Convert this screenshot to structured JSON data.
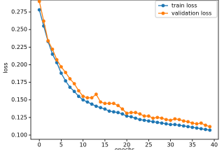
{
  "chart_data": {
    "type": "line",
    "x_label": "epochs",
    "y_label": "loss",
    "x": [
      0,
      1,
      2,
      3,
      4,
      5,
      6,
      7,
      8,
      9,
      10,
      11,
      12,
      13,
      14,
      15,
      16,
      17,
      18,
      19,
      20,
      21,
      22,
      23,
      24,
      25,
      26,
      27,
      28,
      29,
      30,
      31,
      32,
      33,
      34,
      35,
      36,
      37,
      38,
      39
    ],
    "series": [
      {
        "name": "train loss",
        "color": "#1f77b4",
        "values": [
          0.278,
          0.255,
          0.233,
          0.215,
          0.203,
          0.188,
          0.177,
          0.168,
          0.162,
          0.155,
          0.15,
          0.147,
          0.144,
          0.141,
          0.139,
          0.137,
          0.134,
          0.133,
          0.132,
          0.13,
          0.127,
          0.126,
          0.124,
          0.122,
          0.121,
          0.12,
          0.119,
          0.118,
          0.117,
          0.116,
          0.115,
          0.115,
          0.114,
          0.113,
          0.112,
          0.111,
          0.11,
          0.109,
          0.108,
          0.107
        ]
      },
      {
        "name": "validation loss",
        "color": "#ff7f0e",
        "values": [
          0.29,
          0.262,
          0.234,
          0.222,
          0.207,
          0.197,
          0.189,
          0.18,
          0.173,
          0.163,
          0.155,
          0.153,
          0.153,
          0.158,
          0.147,
          0.145,
          0.145,
          0.145,
          0.142,
          0.137,
          0.131,
          0.132,
          0.132,
          0.13,
          0.127,
          0.127,
          0.124,
          0.125,
          0.124,
          0.122,
          0.121,
          0.123,
          0.122,
          0.12,
          0.119,
          0.117,
          0.116,
          0.117,
          0.114,
          0.112
        ]
      }
    ],
    "xlim": [
      -1.95,
      40.95
    ],
    "ylim": [
      0.094,
      0.292
    ],
    "xticks": [
      0,
      5,
      10,
      15,
      20,
      25,
      30,
      35,
      40
    ],
    "yticks": [
      {
        "value": 0.1,
        "label": "0.100"
      },
      {
        "value": 0.125,
        "label": "0.125"
      },
      {
        "value": 0.15,
        "label": "0.150"
      },
      {
        "value": 0.175,
        "label": "0.175"
      },
      {
        "value": 0.2,
        "label": "0.200"
      },
      {
        "value": 0.225,
        "label": "0.225"
      },
      {
        "value": 0.25,
        "label": "0.250"
      },
      {
        "value": 0.275,
        "label": "0.275"
      }
    ],
    "legend": "upper right"
  }
}
